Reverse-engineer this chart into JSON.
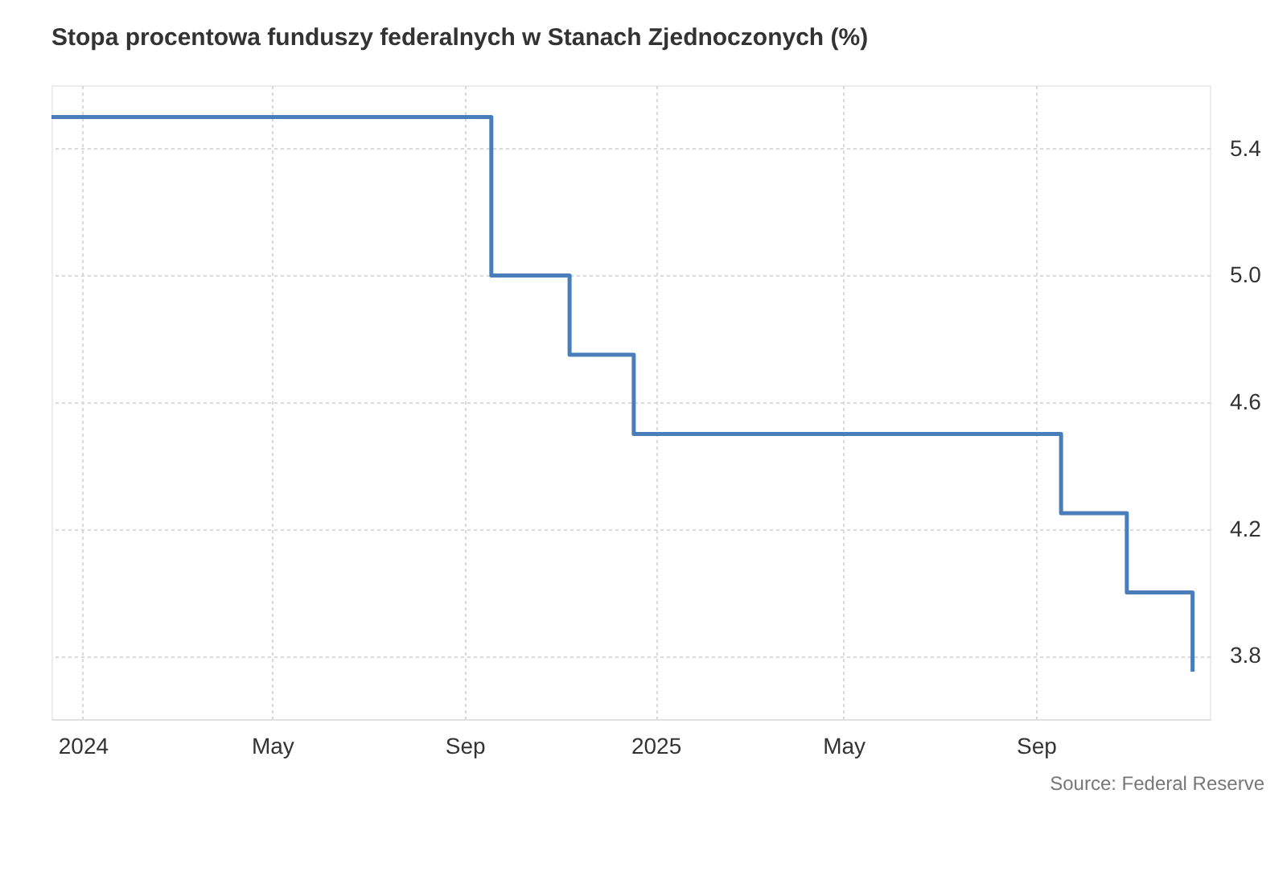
{
  "chart_data": {
    "type": "step",
    "title": "Stopa procentowa funduszy federalnych w Stanach Zjednoczonych (%)",
    "x": [
      "2023-12-12",
      "2024-09-18",
      "2024-11-07",
      "2024-12-18",
      "2025-09-17",
      "2025-10-29",
      "2025-12-10"
    ],
    "series": [
      {
        "color": "#4a7ebb",
        "values": [
          5.5,
          5.0,
          4.75,
          4.5,
          4.25,
          4.0,
          3.75
        ]
      }
    ],
    "xlim": [
      "2023-12-12",
      "2025-12-21"
    ],
    "xticks": [
      {
        "value": "2024-01-01",
        "label": "2024"
      },
      {
        "value": "2024-05-01",
        "label": "May"
      },
      {
        "value": "2024-09-01",
        "label": "Sep"
      },
      {
        "value": "2025-01-01",
        "label": "2025"
      },
      {
        "value": "2025-05-01",
        "label": "May"
      },
      {
        "value": "2025-09-01",
        "label": "Sep"
      }
    ],
    "ylim": [
      3.6,
      5.6
    ],
    "yticks": [
      {
        "value": 3.8,
        "label": "3.8"
      },
      {
        "value": 4.2,
        "label": "4.2"
      },
      {
        "value": 4.6,
        "label": "4.6"
      },
      {
        "value": 5.0,
        "label": "5.0"
      },
      {
        "value": 5.4,
        "label": "5.4"
      }
    ],
    "grid": true,
    "annotations": [
      "Source: Federal Reserve"
    ]
  }
}
